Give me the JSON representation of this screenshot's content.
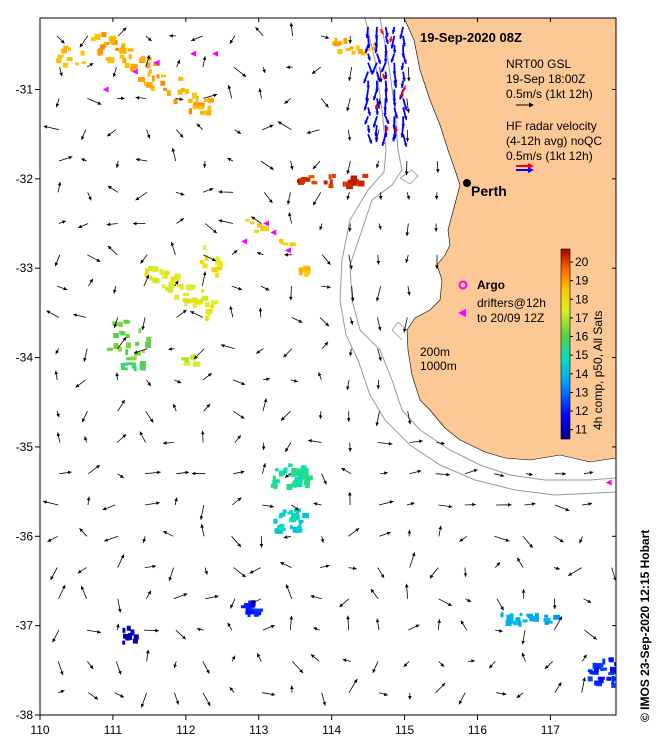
{
  "map": {
    "lon_range": [
      110,
      117.9
    ],
    "lat_range": [
      -38,
      -30.2
    ],
    "x_ticks": [
      "110",
      "111",
      "112",
      "113",
      "114",
      "115",
      "116",
      "117"
    ],
    "y_ticks": [
      "-31",
      "-32",
      "-33",
      "-34",
      "-35",
      "-36",
      "-37",
      "-38"
    ],
    "land_color": "#fcc896",
    "isobath_color": "#999999"
  },
  "header": {
    "timestamp": "19-Sep-2020 08Z"
  },
  "legend": {
    "gsl_line1": "NRT00 GSL",
    "gsl_line2": "19-Sep 18:00Z",
    "gsl_line3": "0.5m/s (1kt 12h)",
    "hf_line1": "HF radar velocity",
    "hf_line2": "(4-12h avg) noQC",
    "hf_line3": "0.5m/s (1kt 12h)",
    "radar_color_red": "#ff0000",
    "radar_color_blue": "#0000ff"
  },
  "places": {
    "perth": "Perth"
  },
  "argo": {
    "label": "Argo",
    "drifter_line1": "drifters@12h",
    "drifter_line2": "to 20/09 12Z",
    "color": "#ff00ff"
  },
  "isobaths": {
    "depth1": "200m",
    "depth2": "1000m"
  },
  "colorbar": {
    "ticks": [
      "11",
      "12",
      "13",
      "14",
      "15",
      "16",
      "17",
      "18",
      "19",
      "20"
    ],
    "min": 10.5,
    "max": 20.7,
    "label": "4h comp, p50, All Sats"
  },
  "credit": "© IMOS 23-Sep-2020 12:15 Hobart"
}
